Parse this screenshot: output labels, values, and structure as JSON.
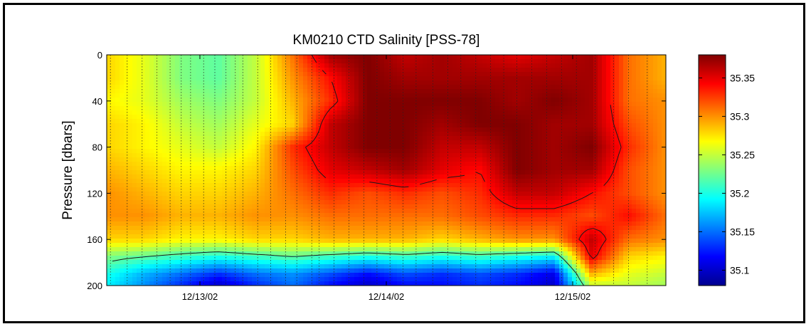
{
  "chart_data": {
    "type": "heatmap",
    "title": "KM0210 CTD Salinity [PSS-78]",
    "ylabel": "Pressure [dbars]",
    "xlabel": "",
    "y_axis": {
      "ticks": [
        0,
        40,
        80,
        120,
        160,
        200
      ],
      "range": [
        0,
        200
      ],
      "reversed": true
    },
    "x_axis": {
      "tick_labels": [
        "12/13/02",
        "12/14/02",
        "12/15/02"
      ],
      "tick_values": [
        1.0,
        2.0,
        3.0
      ],
      "range": [
        0.5,
        3.5
      ]
    },
    "colorbar": {
      "ticks": [
        35.1,
        35.15,
        35.2,
        35.25,
        35.3,
        35.35
      ],
      "range": [
        35.08,
        35.38
      ],
      "colormap": "jet"
    },
    "contour_levels": [
      35.22,
      35.34
    ],
    "cast_times": [
      0.52,
      0.61,
      0.69,
      0.77,
      0.84,
      0.9,
      0.95,
      1.02,
      1.08,
      1.14,
      1.19,
      1.23,
      1.31,
      1.38,
      1.46,
      1.52,
      1.6,
      1.64,
      1.72,
      1.8,
      1.88,
      1.95,
      2.02,
      2.09,
      2.16,
      2.25,
      2.33,
      2.4,
      2.48,
      2.56,
      2.63,
      2.7,
      2.78,
      2.86,
      2.94,
      3.02,
      3.12,
      3.22,
      3.3,
      3.4
    ],
    "profile_times": [
      0.5,
      0.7,
      0.9,
      1.1,
      1.3,
      1.5,
      1.7,
      1.9,
      2.1,
      2.3,
      2.5,
      2.7,
      2.9,
      3.1,
      3.3,
      3.5
    ],
    "profile_depths": [
      0,
      20,
      40,
      60,
      80,
      100,
      120,
      140,
      160,
      175,
      190,
      200
    ],
    "salinity": [
      [
        35.28,
        35.26,
        35.23,
        35.22,
        35.25,
        35.31,
        35.37,
        35.38,
        35.36,
        35.37,
        35.36,
        35.35,
        35.36,
        35.37,
        35.31,
        35.29
      ],
      [
        35.28,
        35.26,
        35.23,
        35.22,
        35.25,
        35.3,
        35.34,
        35.38,
        35.37,
        35.37,
        35.37,
        35.37,
        35.37,
        35.37,
        35.31,
        35.29
      ],
      [
        35.27,
        35.26,
        35.24,
        35.23,
        35.25,
        35.29,
        35.33,
        35.38,
        35.38,
        35.38,
        35.38,
        35.37,
        35.38,
        35.37,
        35.31,
        35.3
      ],
      [
        35.28,
        35.27,
        35.25,
        35.24,
        35.26,
        35.28,
        35.36,
        35.38,
        35.38,
        35.37,
        35.38,
        35.38,
        35.37,
        35.37,
        35.32,
        35.3
      ],
      [
        35.28,
        35.27,
        35.26,
        35.25,
        35.27,
        35.33,
        35.36,
        35.38,
        35.38,
        35.36,
        35.36,
        35.38,
        35.37,
        35.38,
        35.33,
        35.3
      ],
      [
        35.29,
        35.28,
        35.27,
        35.27,
        35.28,
        35.32,
        35.35,
        35.36,
        35.37,
        35.35,
        35.34,
        35.38,
        35.37,
        35.37,
        35.32,
        35.3
      ],
      [
        35.3,
        35.29,
        35.28,
        35.28,
        35.29,
        35.31,
        35.33,
        35.32,
        35.33,
        35.32,
        35.33,
        35.36,
        35.36,
        35.34,
        35.32,
        35.3
      ],
      [
        35.3,
        35.3,
        35.29,
        35.29,
        35.3,
        35.3,
        35.31,
        35.31,
        35.31,
        35.31,
        35.32,
        35.33,
        35.33,
        35.32,
        35.34,
        35.31
      ],
      [
        35.28,
        35.28,
        35.27,
        35.27,
        35.28,
        35.28,
        35.29,
        35.29,
        35.29,
        35.28,
        35.29,
        35.3,
        35.3,
        35.36,
        35.31,
        35.3
      ],
      [
        35.23,
        35.22,
        35.21,
        35.2,
        35.21,
        35.22,
        35.21,
        35.2,
        35.21,
        35.2,
        35.21,
        35.2,
        35.19,
        35.35,
        35.28,
        35.27
      ],
      [
        35.2,
        35.17,
        35.15,
        35.13,
        35.15,
        35.16,
        35.14,
        35.12,
        35.14,
        35.13,
        35.14,
        35.13,
        35.11,
        35.29,
        35.26,
        35.25
      ],
      [
        35.19,
        35.16,
        35.13,
        35.1,
        35.13,
        35.15,
        35.12,
        35.1,
        35.12,
        35.12,
        35.13,
        35.12,
        35.1,
        35.25,
        35.25,
        35.24
      ]
    ]
  }
}
